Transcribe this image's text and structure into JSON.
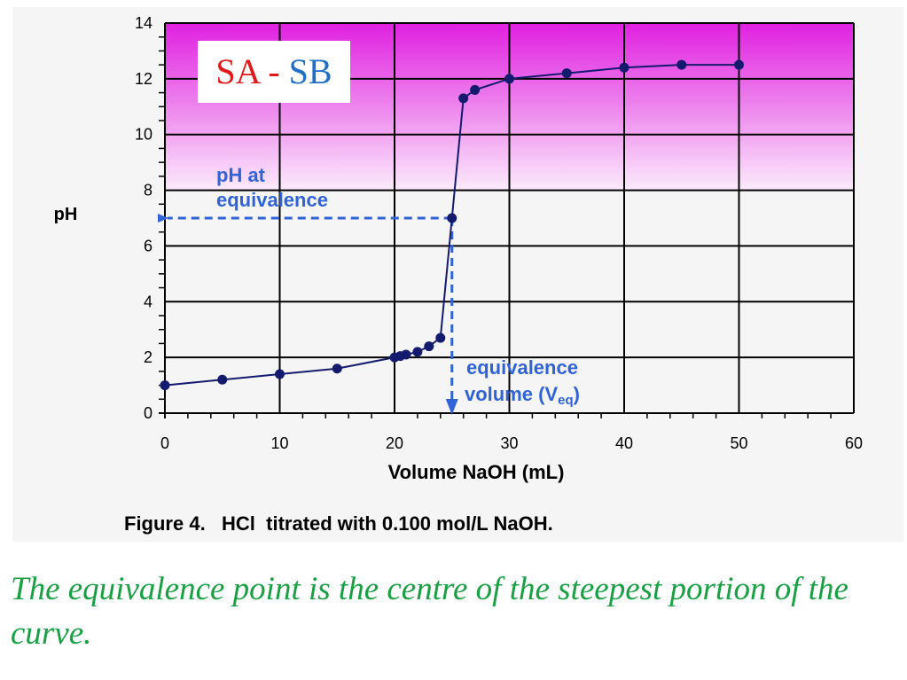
{
  "colors": {
    "marker": "#141a6e",
    "annotation": "#2f63d6",
    "grid": "#000000",
    "sa": "#e01a1a",
    "sb": "#1f6fc6",
    "caption": "#18a042",
    "band_top": "#e020e0",
    "band_bottom": "#fbeafb"
  },
  "chart_data": {
    "type": "line",
    "xlabel": "Volume NaOH (mL)",
    "ylabel": "pH",
    "xlim": [
      0,
      60
    ],
    "ylim": [
      0,
      14
    ],
    "xticks": [
      0,
      10,
      20,
      30,
      40,
      50,
      60
    ],
    "yticks": [
      0,
      2,
      4,
      6,
      8,
      10,
      12,
      14
    ],
    "grid": true,
    "shaded_band": {
      "from": 8,
      "to": 14,
      "style": "magenta gradient"
    },
    "series": [
      {
        "x": [
          0,
          5,
          10,
          15,
          20,
          20.5,
          21,
          22,
          23,
          24,
          25,
          26,
          27,
          30,
          35,
          40,
          45,
          50
        ],
        "y": [
          1.0,
          1.2,
          1.4,
          1.6,
          2.0,
          2.05,
          2.1,
          2.2,
          2.4,
          2.7,
          7.0,
          11.3,
          11.6,
          12.0,
          12.2,
          12.4,
          12.5,
          12.5
        ]
      }
    ],
    "equivalence_point": {
      "x": 25,
      "y": 7
    },
    "annotations": {
      "ph_at_equivalence": [
        "pH at",
        "equivalence"
      ],
      "equivalence_volume": [
        "equivalence",
        "volume (V",
        "eq",
        ")"
      ]
    }
  },
  "inset_title": {
    "sa": "SA",
    "dash": "-",
    "sb": "SB"
  },
  "figure_caption": "Figure 4.   HCl  titrated with 0.100 mol/L NaOH.",
  "caption": "The equivalence point is the centre of the steepest portion of the curve."
}
